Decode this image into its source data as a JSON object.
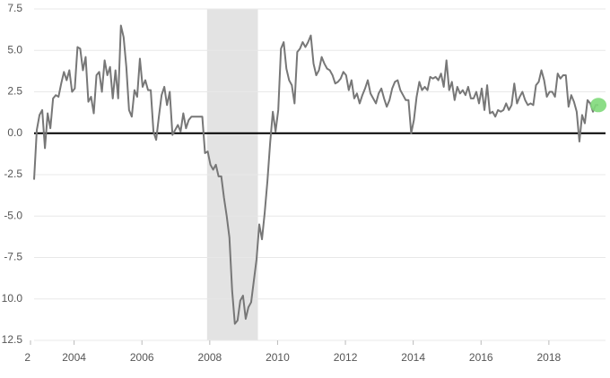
{
  "chart_data": {
    "type": "line",
    "xlim": [
      2002.82,
      2019.67
    ],
    "ylim": [
      -12.5,
      7.5
    ],
    "grid": true,
    "shaded_regions": [
      [
        2007.92,
        2009.42
      ]
    ],
    "highlight_color": "#7fd97a",
    "xticks": [
      {
        "value": 2002,
        "label": "2"
      },
      2004,
      2006,
      2008,
      2010,
      2012,
      2014,
      2016,
      2018
    ],
    "yticks": [
      {
        "value": 7.5,
        "label": "7.5"
      },
      {
        "value": 5,
        "label": "5.0"
      },
      {
        "value": 2.5,
        "label": "2.5"
      },
      {
        "value": 0,
        "label": "0.0"
      },
      {
        "value": -2.5,
        "label": "-2.5"
      },
      {
        "value": -5,
        "label": "-5.0"
      },
      {
        "value": -7.5,
        "label": "-7.5"
      },
      {
        "value": -10,
        "label": "10.0"
      },
      {
        "value": -12.5,
        "label": "12.5"
      }
    ],
    "x": [
      2002.82,
      2002.9,
      2002.98,
      2003.06,
      2003.14,
      2003.22,
      2003.3,
      2003.38,
      2003.46,
      2003.54,
      2003.62,
      2003.7,
      2003.78,
      2003.86,
      2003.94,
      2004.02,
      2004.1,
      2004.18,
      2004.26,
      2004.34,
      2004.42,
      2004.5,
      2004.58,
      2004.66,
      2004.74,
      2004.82,
      2004.9,
      2004.98,
      2005.06,
      2005.14,
      2005.22,
      2005.3,
      2005.38,
      2005.46,
      2005.54,
      2005.62,
      2005.7,
      2005.78,
      2005.86,
      2005.94,
      2006.02,
      2006.1,
      2006.18,
      2006.26,
      2006.34,
      2006.42,
      2006.5,
      2006.58,
      2006.66,
      2006.74,
      2006.82,
      2006.9,
      2006.98,
      2007.06,
      2007.14,
      2007.22,
      2007.3,
      2007.38,
      2007.46,
      2007.54,
      2007.62,
      2007.7,
      2007.78,
      2007.86,
      2007.94,
      2008.02,
      2008.1,
      2008.18,
      2008.26,
      2008.34,
      2008.42,
      2008.5,
      2008.58,
      2008.66,
      2008.74,
      2008.82,
      2008.9,
      2008.98,
      2009.06,
      2009.14,
      2009.22,
      2009.3,
      2009.38,
      2009.46,
      2009.54,
      2009.62,
      2009.7,
      2009.78,
      2009.86,
      2009.94,
      2010.02,
      2010.1,
      2010.18,
      2010.26,
      2010.34,
      2010.42,
      2010.5,
      2010.58,
      2010.66,
      2010.74,
      2010.82,
      2010.9,
      2010.98,
      2011.06,
      2011.14,
      2011.22,
      2011.3,
      2011.38,
      2011.46,
      2011.54,
      2011.62,
      2011.7,
      2011.78,
      2011.86,
      2011.94,
      2012.02,
      2012.1,
      2012.18,
      2012.26,
      2012.34,
      2012.42,
      2012.5,
      2012.58,
      2012.66,
      2012.74,
      2012.82,
      2012.9,
      2012.98,
      2013.06,
      2013.14,
      2013.22,
      2013.3,
      2013.38,
      2013.46,
      2013.54,
      2013.62,
      2013.7,
      2013.78,
      2013.86,
      2013.94,
      2014.02,
      2014.1,
      2014.18,
      2014.26,
      2014.34,
      2014.42,
      2014.5,
      2014.58,
      2014.66,
      2014.74,
      2014.82,
      2014.9,
      2014.98,
      2015.06,
      2015.14,
      2015.22,
      2015.3,
      2015.38,
      2015.46,
      2015.54,
      2015.62,
      2015.7,
      2015.78,
      2015.86,
      2015.94,
      2016.02,
      2016.1,
      2016.18,
      2016.26,
      2016.34,
      2016.42,
      2016.5,
      2016.58,
      2016.66,
      2016.74,
      2016.82,
      2016.9,
      2016.98,
      2017.06,
      2017.14,
      2017.22,
      2017.3,
      2017.38,
      2017.46,
      2017.54,
      2017.62,
      2017.7,
      2017.78,
      2017.86,
      2017.94,
      2018.02,
      2018.1,
      2018.18,
      2018.26,
      2018.34,
      2018.42,
      2018.5,
      2018.58,
      2018.66,
      2018.74,
      2018.82,
      2018.9,
      2018.98,
      2019.06,
      2019.14,
      2019.22,
      2019.3,
      2019.38,
      2019.46
    ],
    "series": [
      {
        "color": "#777777",
        "values": [
          -2.8,
          0.2,
          1.1,
          1.4,
          -0.9,
          1.2,
          0.3,
          2.1,
          2.3,
          2.2,
          3.0,
          3.7,
          3.2,
          3.8,
          2.5,
          2.7,
          5.2,
          5.1,
          3.8,
          4.6,
          1.9,
          2.2,
          1.2,
          3.5,
          3.7,
          2.5,
          4.4,
          3.5,
          4.0,
          2.1,
          3.8,
          2.1,
          6.5,
          5.8,
          4.0,
          1.4,
          1.0,
          2.6,
          2.2,
          4.5,
          2.8,
          3.2,
          2.6,
          2.6,
          0.1,
          -0.4,
          1.0,
          2.3,
          2.8,
          1.7,
          2.5,
          -0.1,
          0.2,
          0.5,
          0.1,
          1.2,
          0.3,
          0.8,
          1.0,
          1.0,
          1.0,
          1.0,
          1.0,
          -1.2,
          -1.1,
          -1.9,
          -2.2,
          -1.9,
          -2.6,
          -2.6,
          -3.9,
          -5.0,
          -6.3,
          -9.5,
          -11.5,
          -11.3,
          -10.1,
          -9.8,
          -11.2,
          -10.5,
          -10.2,
          -8.9,
          -7.6,
          -5.5,
          -6.4,
          -4.8,
          -2.9,
          -0.6,
          1.3,
          0.1,
          1.4,
          5.1,
          5.5,
          3.9,
          3.2,
          2.9,
          1.8,
          4.9,
          5.1,
          5.5,
          5.2,
          5.5,
          5.9,
          4.2,
          3.5,
          3.8,
          4.6,
          4.2,
          3.9,
          3.8,
          3.5,
          3.0,
          3.1,
          3.3,
          3.7,
          3.5,
          2.6,
          3.2,
          2.1,
          2.4,
          1.8,
          2.3,
          2.7,
          3.2,
          2.4,
          2.1,
          1.8,
          2.4,
          2.7,
          2.1,
          1.6,
          2.0,
          2.7,
          3.1,
          3.2,
          2.6,
          2.3,
          2.0,
          2.0,
          0.0,
          0.8,
          2.2,
          3.1,
          2.6,
          2.8,
          2.6,
          3.4,
          3.3,
          3.4,
          3.2,
          3.6,
          2.8,
          4.4,
          2.6,
          3.1,
          2.0,
          2.8,
          2.4,
          2.6,
          2.3,
          2.8,
          2.1,
          2.1,
          2.5,
          1.8,
          2.7,
          1.4,
          2.9,
          1.2,
          1.3,
          1.0,
          1.4,
          1.3,
          1.4,
          1.8,
          1.4,
          1.7,
          3.0,
          1.8,
          2.2,
          2.5,
          2.0,
          1.7,
          1.8,
          1.7,
          2.9,
          3.1,
          3.8,
          3.2,
          2.2,
          2.5,
          2.5,
          2.2,
          3.6,
          3.3,
          3.5,
          3.5,
          1.6,
          2.3,
          1.9,
          1.3,
          -0.5,
          1.1,
          0.6,
          2.0,
          1.8,
          1.3,
          1.7,
          1.7
        ]
      }
    ]
  }
}
